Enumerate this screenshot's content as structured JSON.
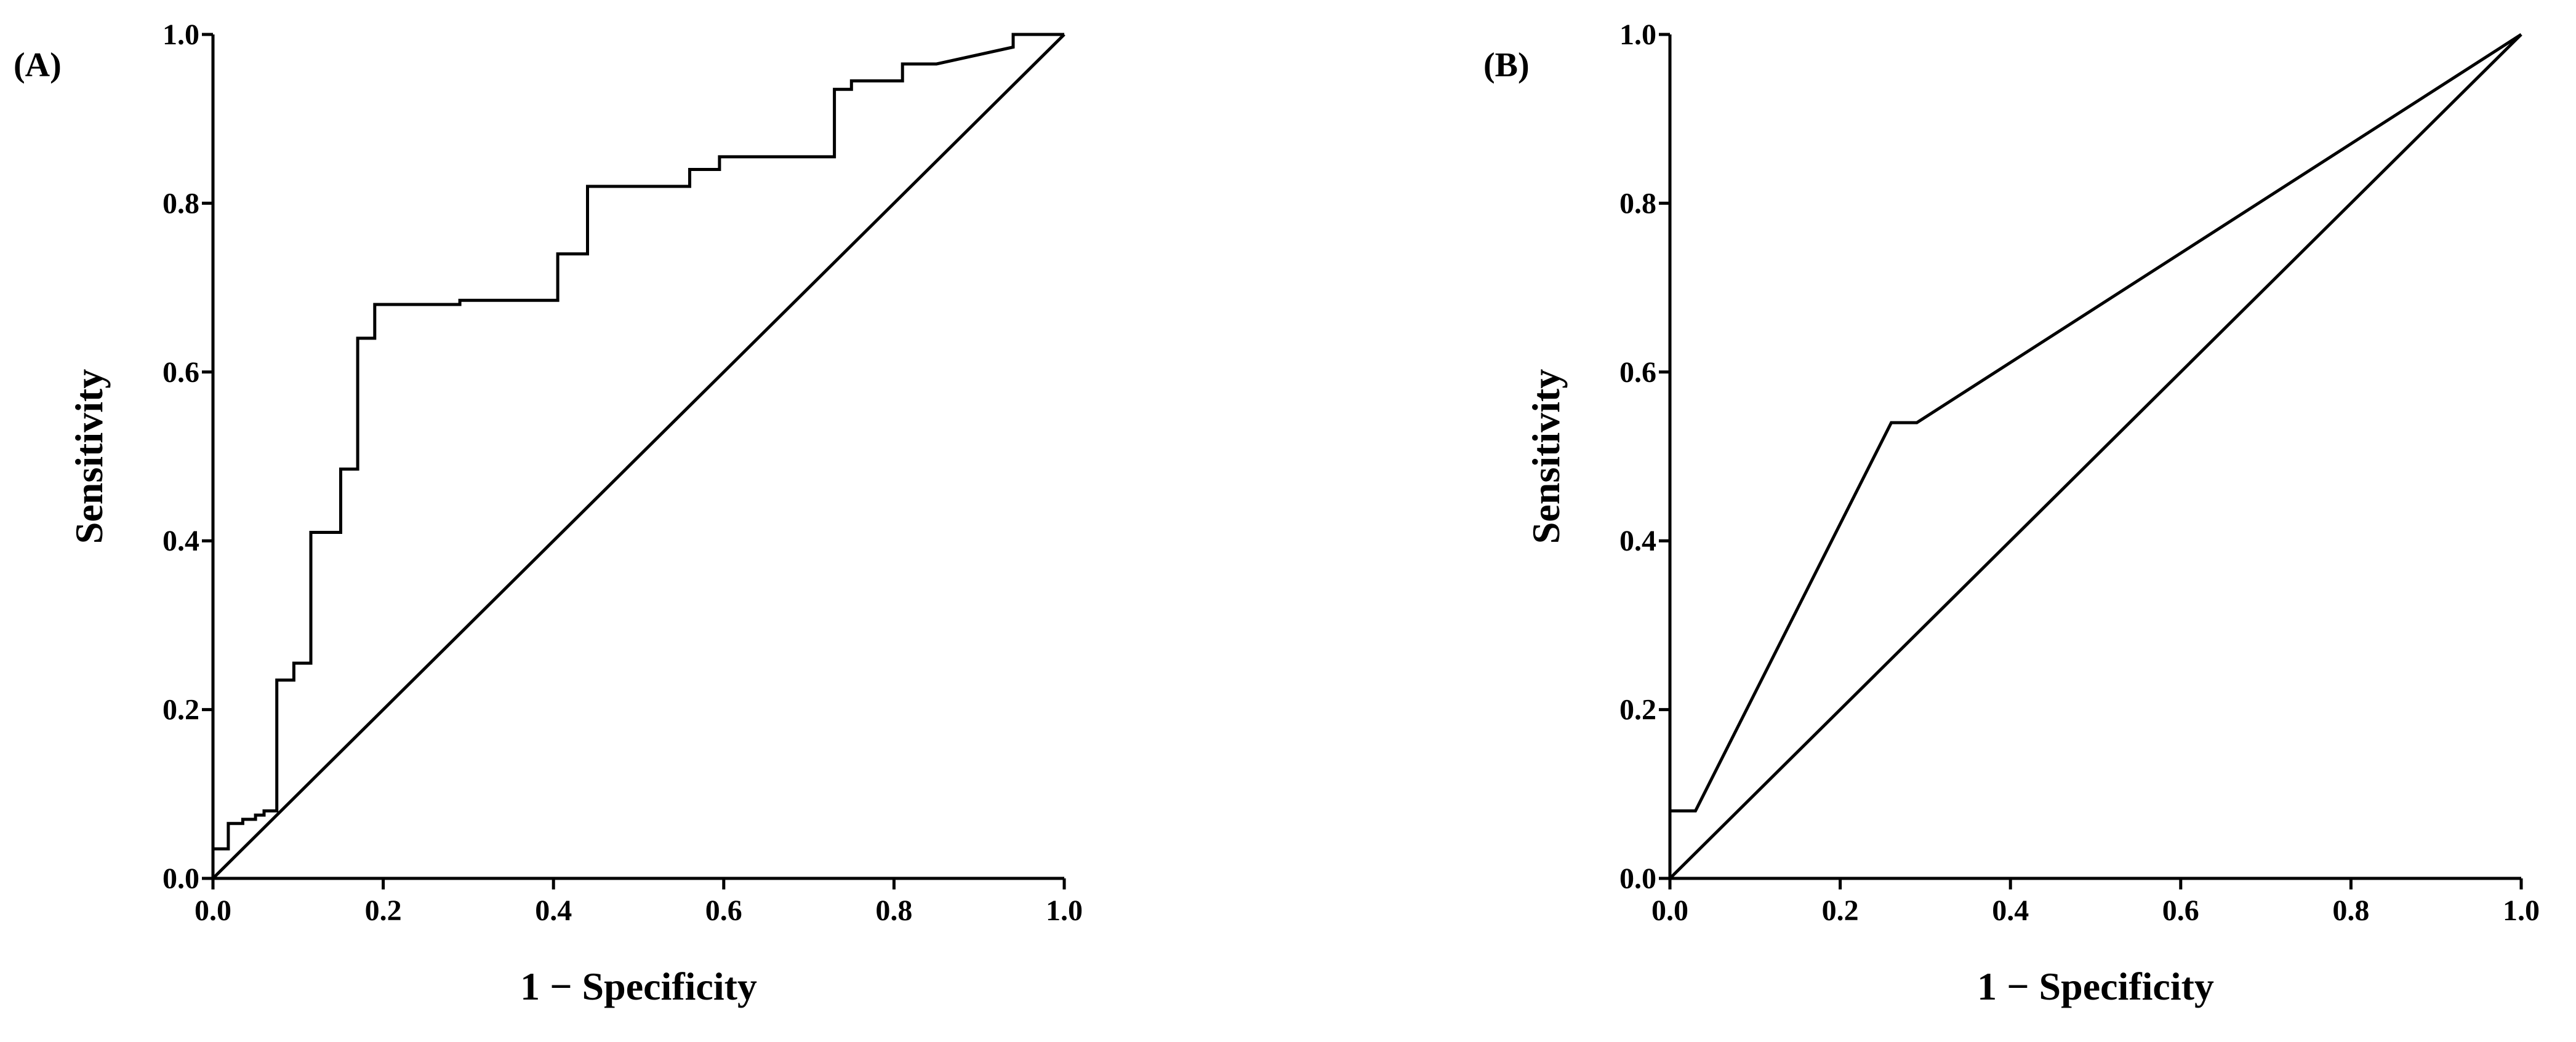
{
  "chart_data": [
    {
      "type": "line",
      "panel_label": "(A)",
      "xlabel": "1 − Specificity",
      "ylabel": "Sensitivity",
      "xlim": [
        0,
        1
      ],
      "ylim": [
        0,
        1
      ],
      "xticks": [
        "0.0",
        "0.2",
        "0.4",
        "0.6",
        "0.8",
        "1.0"
      ],
      "yticks": [
        "0.0",
        "0.2",
        "0.4",
        "0.6",
        "0.8",
        "1.0"
      ],
      "grid": false,
      "series": [
        {
          "role": "roc",
          "points": [
            [
              0.0,
              0.0
            ],
            [
              0.0,
              0.035
            ],
            [
              0.018,
              0.035
            ],
            [
              0.018,
              0.065
            ],
            [
              0.035,
              0.065
            ],
            [
              0.035,
              0.07
            ],
            [
              0.05,
              0.07
            ],
            [
              0.05,
              0.075
            ],
            [
              0.06,
              0.075
            ],
            [
              0.06,
              0.08
            ],
            [
              0.075,
              0.08
            ],
            [
              0.075,
              0.235
            ],
            [
              0.095,
              0.235
            ],
            [
              0.095,
              0.255
            ],
            [
              0.115,
              0.255
            ],
            [
              0.115,
              0.41
            ],
            [
              0.15,
              0.41
            ],
            [
              0.15,
              0.485
            ],
            [
              0.17,
              0.485
            ],
            [
              0.17,
              0.64
            ],
            [
              0.19,
              0.64
            ],
            [
              0.19,
              0.68
            ],
            [
              0.29,
              0.68
            ],
            [
              0.29,
              0.685
            ],
            [
              0.405,
              0.685
            ],
            [
              0.405,
              0.74
            ],
            [
              0.44,
              0.74
            ],
            [
              0.44,
              0.82
            ],
            [
              0.56,
              0.82
            ],
            [
              0.56,
              0.84
            ],
            [
              0.595,
              0.84
            ],
            [
              0.595,
              0.855
            ],
            [
              0.73,
              0.855
            ],
            [
              0.73,
              0.935
            ],
            [
              0.75,
              0.935
            ],
            [
              0.75,
              0.945
            ],
            [
              0.81,
              0.945
            ],
            [
              0.81,
              0.965
            ],
            [
              0.85,
              0.965
            ],
            [
              0.94,
              0.985
            ],
            [
              0.94,
              1.0
            ],
            [
              1.0,
              1.0
            ]
          ]
        },
        {
          "role": "reference",
          "points": [
            [
              0,
              0
            ],
            [
              1,
              1
            ]
          ]
        }
      ]
    },
    {
      "type": "line",
      "panel_label": "(B)",
      "xlabel": "1 − Specificity",
      "ylabel": "Sensitivity",
      "xlim": [
        0,
        1
      ],
      "ylim": [
        0,
        1
      ],
      "xticks": [
        "0.0",
        "0.2",
        "0.4",
        "0.6",
        "0.8",
        "1.0"
      ],
      "yticks": [
        "0.0",
        "0.2",
        "0.4",
        "0.6",
        "0.8",
        "1.0"
      ],
      "grid": false,
      "series": [
        {
          "role": "roc",
          "points": [
            [
              0.0,
              0.0
            ],
            [
              0.0,
              0.08
            ],
            [
              0.03,
              0.08
            ],
            [
              0.26,
              0.54
            ],
            [
              0.29,
              0.54
            ],
            [
              1.0,
              1.0
            ]
          ]
        },
        {
          "role": "reference",
          "points": [
            [
              0,
              0
            ],
            [
              1,
              1
            ]
          ]
        }
      ]
    }
  ]
}
